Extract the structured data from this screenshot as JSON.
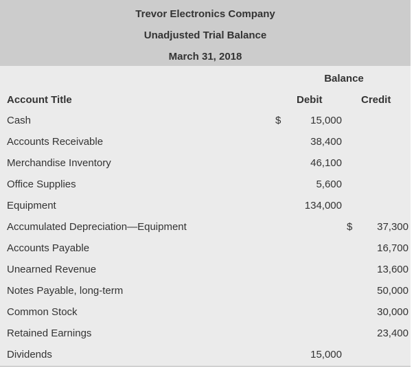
{
  "header": {
    "company": "Trevor Electronics Company",
    "statement": "Unadjusted Trial Balance",
    "date": "March 31, 2018"
  },
  "columns": {
    "balance": "Balance",
    "account_title": "Account Title",
    "debit": "Debit",
    "credit": "Credit"
  },
  "rows": [
    {
      "title": "Cash",
      "debit_symbol": "$",
      "debit": "15,000",
      "credit_symbol": "",
      "credit": ""
    },
    {
      "title": "Accounts Receivable",
      "debit_symbol": "",
      "debit": "38,400",
      "credit_symbol": "",
      "credit": ""
    },
    {
      "title": "Merchandise Inventory",
      "debit_symbol": "",
      "debit": "46,100",
      "credit_symbol": "",
      "credit": ""
    },
    {
      "title": "Office Supplies",
      "debit_symbol": "",
      "debit": "5,600",
      "credit_symbol": "",
      "credit": ""
    },
    {
      "title": "Equipment",
      "debit_symbol": "",
      "debit": "134,000",
      "credit_symbol": "",
      "credit": ""
    },
    {
      "title": "Accumulated Depreciation—Equipment",
      "debit_symbol": "",
      "debit": "",
      "credit_symbol": "$",
      "credit": "37,300"
    },
    {
      "title": "Accounts Payable",
      "debit_symbol": "",
      "debit": "",
      "credit_symbol": "",
      "credit": "16,700"
    },
    {
      "title": "Unearned Revenue",
      "debit_symbol": "",
      "debit": "",
      "credit_symbol": "",
      "credit": "13,600"
    },
    {
      "title": "Notes Payable, long-term",
      "debit_symbol": "",
      "debit": "",
      "credit_symbol": "",
      "credit": "50,000"
    },
    {
      "title": "Common Stock",
      "debit_symbol": "",
      "debit": "",
      "credit_symbol": "",
      "credit": "30,000"
    },
    {
      "title": "Retained Earnings",
      "debit_symbol": "",
      "debit": "",
      "credit_symbol": "",
      "credit": "23,400"
    },
    {
      "title": "Dividends",
      "debit_symbol": "",
      "debit": "15,000",
      "credit_symbol": "",
      "credit": ""
    }
  ]
}
